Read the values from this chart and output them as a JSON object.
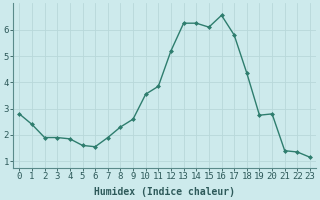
{
  "x": [
    0,
    1,
    2,
    3,
    4,
    5,
    6,
    7,
    8,
    9,
    10,
    11,
    12,
    13,
    14,
    15,
    16,
    17,
    18,
    19,
    20,
    21,
    22,
    23
  ],
  "y": [
    2.8,
    2.4,
    1.9,
    1.9,
    1.85,
    1.6,
    1.55,
    1.9,
    2.3,
    2.6,
    3.55,
    3.85,
    5.2,
    6.25,
    6.25,
    6.1,
    6.55,
    5.8,
    4.35,
    2.75,
    2.8,
    1.4,
    1.35,
    1.15
  ],
  "line_color": "#2e7d6e",
  "marker": "D",
  "marker_size": 2.0,
  "bg_color": "#cdeaec",
  "grid_color": "#b8d8da",
  "xlabel": "Humidex (Indice chaleur)",
  "xlabel_fontsize": 7,
  "tick_fontsize": 6.5,
  "xlim": [
    -0.5,
    23.5
  ],
  "ylim": [
    0.75,
    7.0
  ],
  "yticks": [
    1,
    2,
    3,
    4,
    5,
    6
  ],
  "xticks": [
    0,
    1,
    2,
    3,
    4,
    5,
    6,
    7,
    8,
    9,
    10,
    11,
    12,
    13,
    14,
    15,
    16,
    17,
    18,
    19,
    20,
    21,
    22,
    23
  ],
  "line_width": 1.0
}
